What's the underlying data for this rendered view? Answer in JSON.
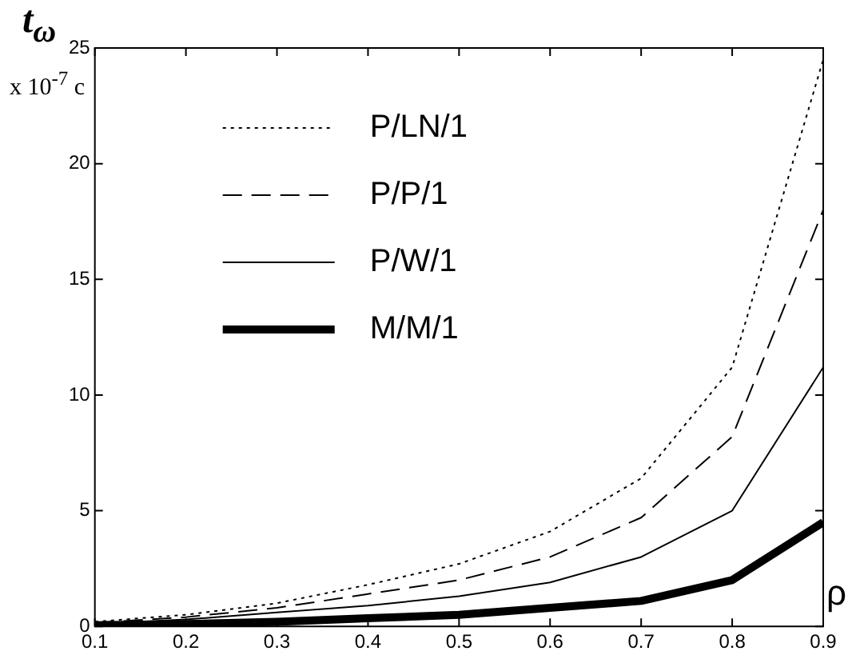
{
  "chart_data": {
    "type": "line",
    "ylabel": "t$_{ω}$",
    "xlabel": "ρ",
    "annotations": [
      "x 10$^{-7}$ c"
    ],
    "x": [
      0.1,
      0.2,
      0.3,
      0.4,
      0.5,
      0.6,
      0.7,
      0.8,
      0.9
    ],
    "xlim": [
      0.1,
      0.9
    ],
    "xticks": [
      0.1,
      0.2,
      0.3,
      0.4,
      0.5,
      0.6,
      0.7,
      0.8,
      0.9
    ],
    "ylim": [
      0,
      25
    ],
    "yticks": [
      0,
      5,
      10,
      15,
      20,
      25
    ],
    "grid": false,
    "legend": "top left",
    "marker": "none",
    "series": [
      {
        "name": "P/LN/1",
        "color": "#000000",
        "line_style": "dotted",
        "values": [
          0.2,
          0.5,
          1.0,
          1.8,
          2.7,
          4.1,
          6.4,
          11.2,
          24.5
        ]
      },
      {
        "name": "P/P/1",
        "color": "#000000",
        "line_style": "dashed",
        "values": [
          0.15,
          0.4,
          0.8,
          1.4,
          2.0,
          3.0,
          4.7,
          8.2,
          18
        ]
      },
      {
        "name": "P/W/1",
        "color": "#000000",
        "line_style": "solid",
        "values": [
          0.1,
          0.3,
          0.6,
          0.9,
          1.3,
          1.9,
          3.0,
          5.0,
          11.2
        ]
      },
      {
        "name": "M/M/1",
        "color": "#000000",
        "line_style": "solid",
        "values": [
          0.05,
          0.1,
          0.2,
          0.35,
          0.5,
          0.8,
          1.1,
          2.0,
          4.5
        ]
      }
    ]
  }
}
